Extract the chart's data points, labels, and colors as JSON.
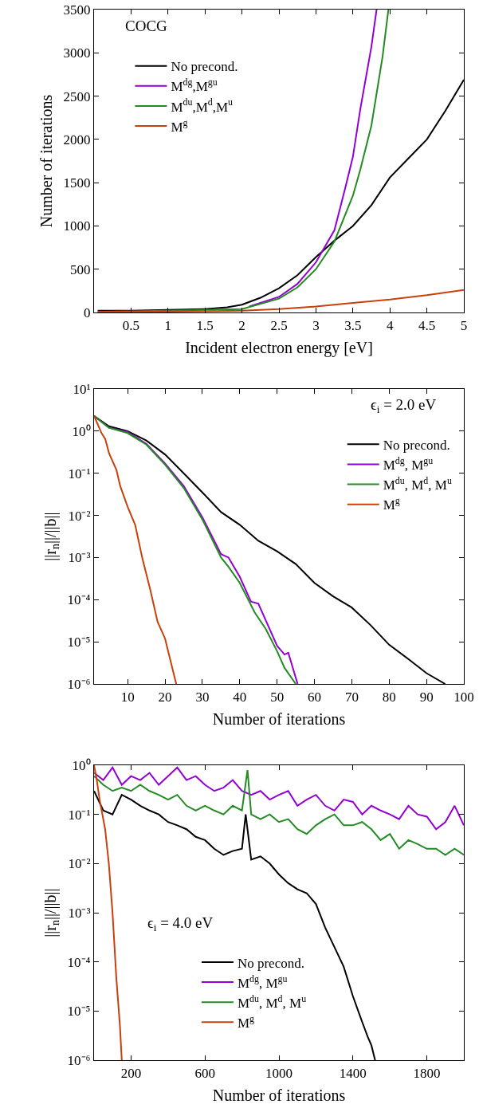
{
  "chart_data": [
    {
      "type": "line",
      "xlabel": "Incident electron energy [eV]",
      "ylabel": "Number of iterations",
      "annotations": [
        "COCG"
      ],
      "xlim": [
        0,
        5
      ],
      "xticks": [
        0.5,
        1,
        1.5,
        2,
        2.5,
        3,
        3.5,
        4,
        4.5,
        5
      ],
      "ylim": [
        0,
        3500
      ],
      "yticks": [
        0,
        500,
        1000,
        1500,
        2000,
        2500,
        3000,
        3500
      ],
      "legend": "top left",
      "series": [
        {
          "name": "No precond.",
          "color": "#000000",
          "x": [
            0.05,
            0.5,
            1,
            1.5,
            1.8,
            2,
            2.25,
            2.5,
            2.75,
            3,
            3.25,
            3.5,
            3.75,
            4,
            4.25,
            4.5,
            4.75,
            5
          ],
          "values": [
            20,
            20,
            30,
            40,
            60,
            90,
            170,
            280,
            430,
            640,
            830,
            1000,
            1240,
            1560,
            1780,
            2000,
            2330,
            2690
          ]
        },
        {
          "name": "M$^{dg}$,M$^{gu}$",
          "color": "#9400d3",
          "x": [
            2.1,
            2.5,
            2.75,
            3,
            3.25,
            3.4,
            3.5,
            3.6,
            3.75,
            3.82
          ],
          "values": [
            70,
            180,
            330,
            580,
            950,
            1450,
            1800,
            2350,
            3070,
            3500
          ]
        },
        {
          "name": "M$^{du}$,M$^{d}$,M$^{u}$",
          "color": "#228b22",
          "x": [
            0.05,
            1,
            1.5,
            2,
            2.5,
            2.75,
            3,
            3.25,
            3.5,
            3.6,
            3.75,
            3.9,
            3.98
          ],
          "values": [
            10,
            20,
            30,
            40,
            160,
            290,
            500,
            820,
            1350,
            1650,
            2160,
            2950,
            3500
          ]
        },
        {
          "name": "M$^{g}$",
          "color": "#c8400a",
          "x": [
            0.05,
            1,
            2,
            2.5,
            3,
            3.5,
            4,
            4.5,
            5
          ],
          "values": [
            10,
            10,
            20,
            40,
            70,
            110,
            150,
            200,
            260
          ]
        }
      ]
    },
    {
      "type": "line",
      "xlabel": "Number of iterations",
      "ylabel": "||r$_{n}$||/||b||",
      "annotations": [
        "ϵ$_{i}$ = 2.0 eV"
      ],
      "log": "y",
      "xlim": [
        1,
        100
      ],
      "xticks": [
        10,
        20,
        30,
        40,
        50,
        60,
        70,
        80,
        90,
        100
      ],
      "ylim": [
        1e-06,
        10
      ],
      "yticks": [
        {
          "value": 1e-06,
          "label": "10⁻⁶"
        },
        {
          "value": 1e-05,
          "label": "10⁻⁵"
        },
        {
          "value": 0.0001,
          "label": "10⁻⁴"
        },
        {
          "value": 0.001,
          "label": "10⁻³"
        },
        {
          "value": 0.01,
          "label": "10⁻²"
        },
        {
          "value": 0.1,
          "label": "10⁻¹"
        },
        {
          "value": 1,
          "label": "10⁰"
        },
        {
          "value": 10,
          "label": "10¹"
        }
      ],
      "legend": "top right",
      "series": [
        {
          "name": "No precond.",
          "color": "#000000",
          "x": [
            1,
            5,
            10,
            15,
            20,
            25,
            30,
            35,
            40,
            45,
            50,
            55,
            60,
            65,
            70,
            75,
            80,
            85,
            90,
            95
          ],
          "values": [
            2.3,
            1.3,
            1.0,
            0.6,
            0.28,
            0.1,
            0.035,
            0.012,
            0.006,
            0.0025,
            0.0014,
            0.0007,
            0.00025,
            0.00012,
            6.5e-05,
            2.5e-05,
            8.5e-06,
            4e-06,
            1.8e-06,
            1e-06
          ]
        },
        {
          "name": "M$^{dg}$, M$^{gu}$",
          "color": "#9400d3",
          "x": [
            1,
            5,
            10,
            15,
            20,
            25,
            30,
            35,
            37,
            40,
            43,
            45,
            50,
            52,
            53,
            55.5
          ],
          "values": [
            2.3,
            1.2,
            0.95,
            0.5,
            0.17,
            0.05,
            0.009,
            0.0012,
            0.001,
            0.00035,
            9e-05,
            8e-05,
            8e-06,
            5e-06,
            5.5e-06,
            1e-06
          ]
        },
        {
          "name": "M$^{du}$, M$^{d}$, M$^{u}$",
          "color": "#228b22",
          "x": [
            1,
            5,
            10,
            15,
            20,
            25,
            30,
            35,
            37,
            40,
            44,
            47,
            50,
            52,
            55
          ],
          "values": [
            2.3,
            1.2,
            0.9,
            0.48,
            0.16,
            0.045,
            0.008,
            0.001,
            0.0006,
            0.00025,
            5e-05,
            2e-05,
            6e-06,
            2.4e-06,
            1e-06
          ]
        },
        {
          "name": "M$^{g}$",
          "color": "#c8400a",
          "x": [
            1,
            3,
            4,
            5,
            7,
            8,
            10,
            12,
            14,
            16,
            18,
            20,
            23
          ],
          "values": [
            2.3,
            0.9,
            0.65,
            0.3,
            0.12,
            0.05,
            0.016,
            0.006,
            0.0009,
            0.00018,
            3e-05,
            1.2e-05,
            1e-06
          ]
        }
      ]
    },
    {
      "type": "line",
      "xlabel": "Number of iterations",
      "ylabel": "||r$_{n}$||/||b||",
      "annotations": [
        "ϵ$_{i}$ = 4.0 eV"
      ],
      "log": "y",
      "xlim": [
        0,
        2000
      ],
      "xticks": [
        200,
        600,
        1000,
        1400,
        1800
      ],
      "ylim": [
        1e-06,
        1
      ],
      "yticks": [
        {
          "value": 1e-06,
          "label": "10⁻⁶"
        },
        {
          "value": 1e-05,
          "label": "10⁻⁵"
        },
        {
          "value": 0.0001,
          "label": "10⁻⁴"
        },
        {
          "value": 0.001,
          "label": "10⁻³"
        },
        {
          "value": 0.01,
          "label": "10⁻²"
        },
        {
          "value": 0.1,
          "label": "10⁻¹"
        },
        {
          "value": 1,
          "label": "10⁰"
        }
      ],
      "legend": "bottom",
      "series": [
        {
          "name": "No precond.",
          "color": "#000000",
          "x": [
            0,
            50,
            100,
            150,
            200,
            250,
            300,
            350,
            400,
            450,
            500,
            550,
            600,
            650,
            700,
            750,
            800,
            820,
            850,
            900,
            950,
            1000,
            1050,
            1100,
            1150,
            1200,
            1250,
            1300,
            1350,
            1400,
            1450,
            1480,
            1500,
            1520
          ],
          "values": [
            0.3,
            0.12,
            0.1,
            0.25,
            0.2,
            0.15,
            0.12,
            0.1,
            0.07,
            0.06,
            0.05,
            0.035,
            0.03,
            0.02,
            0.015,
            0.018,
            0.02,
            0.1,
            0.012,
            0.014,
            0.01,
            0.006,
            0.004,
            0.003,
            0.0025,
            0.0015,
            0.0005,
            0.0002,
            8e-05,
            2e-05,
            6e-06,
            3e-06,
            2e-06,
            1e-06
          ]
        },
        {
          "name": "M$^{dg}$, M$^{gu}$",
          "color": "#9400d3",
          "x": [
            0,
            50,
            100,
            150,
            200,
            250,
            300,
            350,
            400,
            450,
            500,
            550,
            600,
            650,
            700,
            750,
            800,
            850,
            900,
            950,
            1000,
            1050,
            1100,
            1150,
            1200,
            1250,
            1300,
            1350,
            1400,
            1450,
            1500,
            1550,
            1600,
            1650,
            1700,
            1750,
            1800,
            1850,
            1900,
            1950,
            2000
          ],
          "values": [
            0.7,
            0.5,
            0.9,
            0.4,
            0.6,
            0.5,
            0.7,
            0.4,
            0.6,
            0.9,
            0.5,
            0.6,
            0.4,
            0.3,
            0.35,
            0.5,
            0.3,
            0.25,
            0.3,
            0.2,
            0.25,
            0.3,
            0.15,
            0.2,
            0.25,
            0.15,
            0.12,
            0.2,
            0.18,
            0.1,
            0.15,
            0.12,
            0.1,
            0.08,
            0.15,
            0.1,
            0.09,
            0.05,
            0.07,
            0.15,
            0.06
          ]
        },
        {
          "name": "M$^{du}$, M$^{d}$, M$^{u}$",
          "color": "#228b22",
          "x": [
            0,
            50,
            100,
            150,
            200,
            250,
            300,
            350,
            400,
            450,
            500,
            550,
            600,
            650,
            700,
            750,
            800,
            830,
            850,
            900,
            950,
            1000,
            1050,
            1100,
            1150,
            1200,
            1250,
            1300,
            1350,
            1400,
            1450,
            1500,
            1550,
            1600,
            1650,
            1700,
            1750,
            1800,
            1850,
            1900,
            1950,
            2000
          ],
          "values": [
            0.6,
            0.4,
            0.3,
            0.35,
            0.3,
            0.4,
            0.3,
            0.25,
            0.2,
            0.25,
            0.15,
            0.12,
            0.15,
            0.12,
            0.1,
            0.15,
            0.12,
            0.8,
            0.1,
            0.08,
            0.1,
            0.07,
            0.08,
            0.05,
            0.04,
            0.06,
            0.08,
            0.1,
            0.06,
            0.06,
            0.07,
            0.05,
            0.03,
            0.04,
            0.02,
            0.03,
            0.025,
            0.02,
            0.02,
            0.015,
            0.02,
            0.015
          ]
        },
        {
          "name": "M$^{g}$",
          "color": "#c8400a",
          "x": [
            0,
            15,
            30,
            45,
            60,
            80,
            100,
            120,
            140,
            150
          ],
          "values": [
            1,
            0.5,
            0.2,
            0.1,
            0.05,
            0.01,
            0.001,
            5e-05,
            5e-06,
            1e-06
          ]
        }
      ]
    }
  ]
}
